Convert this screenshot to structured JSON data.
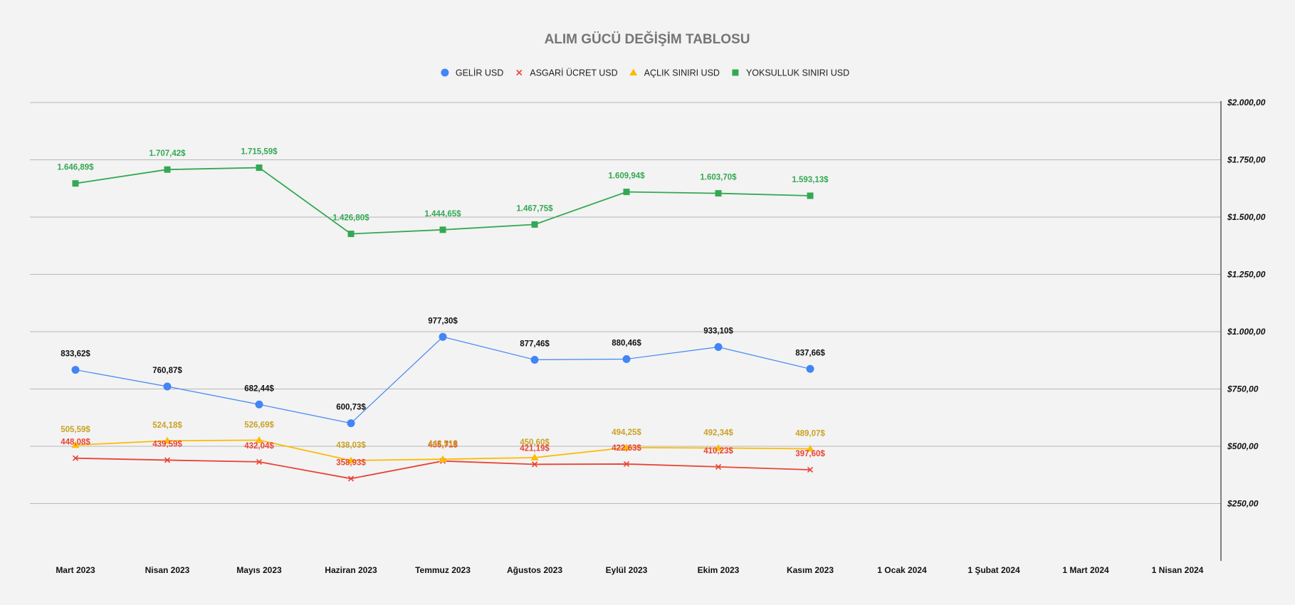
{
  "chart_data": {
    "type": "line",
    "title": "ALIM GÜCÜ DEĞİŞİM TABLOSU",
    "x_tick_labels": [
      "Mart 2023",
      "Nisan 2023",
      "Mayıs 2023",
      "Haziran 2023",
      "Temmuz 2023",
      "Ağustos 2023",
      "Eylül 2023",
      "Ekim 2023",
      "Kasım 2023",
      "1 Ocak 2024",
      "1 Şubat 2024",
      "1 Mart 2024",
      "1 Nisan 2024"
    ],
    "y_axis": {
      "position": "right",
      "min": 0,
      "max": 2000,
      "ticks": [
        250,
        500,
        750,
        1000,
        1250,
        1500,
        1750,
        2000
      ],
      "tick_labels": [
        "$250,00",
        "$500,00",
        "$750,00",
        "$1.000,00",
        "$1.250,00",
        "$1.500,00",
        "$1.750,00",
        "$2.000,00"
      ]
    },
    "grid": true,
    "legend_position": "top",
    "series": [
      {
        "name": "GELİR USD",
        "color": "#4285f4",
        "marker": "circle",
        "values": [
          833.62,
          760.87,
          682.44,
          600.73,
          977.3,
          877.46,
          880.46,
          933.1,
          837.66
        ],
        "labels": [
          "833,62$",
          "760,87$",
          "682,44$",
          "600,73$",
          "977,30$",
          "877,46$",
          "880,46$",
          "933,10$",
          "837,66$"
        ],
        "label_color": "#111111"
      },
      {
        "name": "ASGARİ ÜCRET USD",
        "color": "#ea4335",
        "marker": "x",
        "values": [
          448.08,
          439.59,
          432.04,
          358.93,
          435.71,
          421.19,
          422.63,
          410.23,
          397.6
        ],
        "labels": [
          "448,08$",
          "439,59$",
          "432,04$",
          "358,93$",
          "435,71$",
          "421,19$",
          "422,63$",
          "410,23$",
          "397,60$"
        ],
        "label_color": "#ea4335"
      },
      {
        "name": "AÇLIK SINIRI USD",
        "color": "#fbbc04",
        "marker": "triangle",
        "values": [
          505.59,
          524.18,
          526.69,
          438.03,
          443.51,
          450.6,
          494.25,
          492.34,
          489.07
        ],
        "labels": [
          "505,59$",
          "524,18$",
          "526,69$",
          "438,03$",
          "443,51$",
          "450,60$",
          "494,25$",
          "492,34$",
          "489,07$"
        ],
        "label_color": "#c9a227"
      },
      {
        "name": "YOKSULLUK SINIRI USD",
        "color": "#34a853",
        "marker": "square",
        "values": [
          1646.89,
          1707.42,
          1715.59,
          1426.8,
          1444.65,
          1467.75,
          1609.94,
          1603.7,
          1593.13
        ],
        "labels": [
          "1.646,89$",
          "1.707,42$",
          "1.715,59$",
          "1.426,80$",
          "1.444,65$",
          "1.467,75$",
          "1.609,94$",
          "1.603,70$",
          "1.593,13$"
        ],
        "label_color": "#34a853"
      }
    ]
  }
}
